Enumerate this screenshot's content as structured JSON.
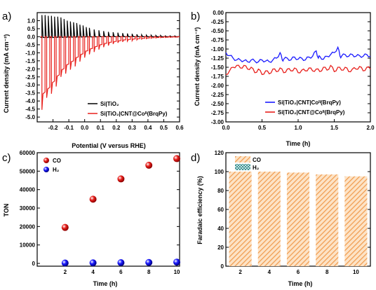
{
  "chart_data": [
    {
      "panel": "a)",
      "type": "line",
      "xlabel": "Potential (V versus RHE)",
      "ylabel": "Current density (mA cm⁻²)",
      "xlim": [
        -0.3,
        0.6
      ],
      "ylim": [
        -5.3,
        1.5
      ],
      "xticks": [
        -0.2,
        -0.1,
        0.0,
        0.1,
        0.2,
        0.3,
        0.4,
        0.5,
        0.6
      ],
      "xtick_labels": [
        "-0.2",
        "-0.1",
        "0.0",
        "0.1",
        "0.2",
        "0.3",
        "0.4",
        "0.5",
        "0.6"
      ],
      "yticks": [
        -5.0,
        -4.5,
        -4.0,
        -3.5,
        -3.0,
        -2.5,
        -2.0,
        -1.5,
        -1.0,
        -0.5,
        0.0,
        0.5,
        1.0
      ],
      "ytick_labels": [
        "-5.0",
        "-4.5",
        "-4.0",
        "-3.5",
        "-3.0",
        "-2.5",
        "-2.0",
        "-1.5",
        "-1.0",
        "-0.5",
        "0.0",
        "0.5",
        "1.0"
      ],
      "legend_position": "bottom-left",
      "series": [
        {
          "name": "Si|TiO₂",
          "color": "#000000",
          "chopped": true,
          "x_start": -0.28,
          "x_end": 0.6,
          "chop_x": [
            -0.27,
            -0.25,
            -0.23,
            -0.21,
            -0.19,
            -0.17,
            -0.15,
            -0.13,
            -0.11,
            -0.09,
            -0.07,
            -0.05,
            -0.03,
            -0.01,
            0.01,
            0.03,
            0.06,
            0.09,
            0.12,
            0.15,
            0.18,
            0.21,
            0.24,
            0.27,
            0.3,
            0.33,
            0.36,
            0.39,
            0.42,
            0.45,
            0.48,
            0.51,
            0.54,
            0.57
          ],
          "spike_y": [
            1.35,
            1.35,
            1.3,
            1.3,
            1.25,
            1.25,
            1.2,
            1.1,
            1.0,
            0.95,
            0.9,
            0.85,
            0.75,
            0.7,
            0.6,
            0.55,
            0.45,
            0.4,
            0.35,
            0.3,
            0.28,
            0.25,
            0.22,
            0.2,
            0.18,
            0.15,
            0.12,
            0.1,
            0.1,
            0.08,
            0.08,
            0.05,
            0.05,
            0.05
          ],
          "base_y": [
            -0.05,
            -0.05,
            -0.05,
            -0.05,
            -0.04,
            -0.04,
            -0.04,
            -0.03,
            -0.03,
            -0.03,
            -0.02,
            -0.02,
            -0.02,
            -0.01,
            -0.01,
            -0.01,
            -0.01,
            0.0,
            0.0,
            0.0,
            0.0,
            0.0,
            0.0,
            0.0,
            0.0,
            0.0,
            0.0,
            0.0,
            0.0,
            0.0,
            0.0,
            0.0,
            0.0,
            0.0
          ]
        },
        {
          "name": "Si|TiO₂|CNT@Coᴵᴵ(BrqPy)",
          "color": "#e8201c",
          "chopped": true,
          "x_start": -0.28,
          "x_end": 0.6,
          "chop_x": [
            -0.27,
            -0.24,
            -0.21,
            -0.18,
            -0.15,
            -0.12,
            -0.09,
            -0.06,
            -0.03,
            0.0,
            0.03,
            0.06,
            0.09,
            0.12,
            0.15,
            0.18,
            0.21,
            0.24,
            0.27,
            0.3,
            0.33,
            0.36,
            0.39,
            0.42,
            0.45,
            0.48,
            0.51,
            0.54,
            0.57
          ],
          "dip_y": [
            -4.55,
            -3.8,
            -3.55,
            -3.1,
            -2.5,
            -2.3,
            -2.05,
            -1.85,
            -1.55,
            -1.3,
            -1.1,
            -0.95,
            -0.8,
            -0.65,
            -0.55,
            -0.45,
            -0.38,
            -0.32,
            -0.28,
            -0.25,
            -0.2,
            -0.15,
            -0.12,
            -0.1,
            -0.08,
            -0.06,
            -0.05,
            -0.04,
            -0.03
          ],
          "plateau_y": [
            -3.55,
            -3.25,
            -2.85,
            -2.45,
            -2.05,
            -1.75,
            -1.55,
            -1.3,
            -1.1,
            -0.9,
            -0.75,
            -0.62,
            -0.5,
            -0.42,
            -0.35,
            -0.3,
            -0.25,
            -0.2,
            -0.17,
            -0.14,
            -0.12,
            -0.1,
            -0.08,
            -0.06,
            -0.05,
            -0.04,
            -0.03,
            -0.02,
            -0.02
          ],
          "base_y": [
            0.0,
            0.0,
            0.0,
            0.0,
            0.0,
            0.0,
            0.0,
            0.0,
            0.0,
            0.0,
            0.0,
            0.0,
            0.0,
            0.0,
            0.0,
            0.0,
            0.0,
            0.0,
            0.0,
            0.0,
            0.0,
            0.0,
            0.0,
            0.0,
            0.0,
            0.0,
            0.0,
            0.0,
            0.0
          ]
        }
      ]
    },
    {
      "panel": "b)",
      "type": "line",
      "xlabel": "Time (h)",
      "ylabel": "Current density (mA cm⁻²)",
      "xlim": [
        0.0,
        2.0
      ],
      "ylim": [
        -3.0,
        0.0
      ],
      "xticks": [
        0.0,
        0.5,
        1.0,
        1.5,
        2.0
      ],
      "xtick_labels": [
        "0.0",
        "0.5",
        "1.0",
        "1.5",
        "2.0"
      ],
      "yticks": [
        -3.0,
        -2.75,
        -2.5,
        -2.25,
        -2.0,
        -1.75,
        -1.5,
        -1.25,
        -1.0,
        -0.75,
        -0.5,
        -0.25,
        0.0
      ],
      "ytick_labels": [
        "-3.00",
        "-2.75",
        "-2.50",
        "-2.25",
        "-2.00",
        "-1.75",
        "-1.50",
        "-1.25",
        "-1.00",
        "-0.75",
        "-0.50",
        "-0.25",
        "0.00"
      ],
      "legend_position": "bottom-right",
      "series": [
        {
          "name": "Si|TiO₂|CNT|Coᴵᴵ(BrqPy)",
          "color": "#1a1aff",
          "x": [
            0.0,
            0.05,
            0.1,
            0.15,
            0.2,
            0.25,
            0.3,
            0.35,
            0.4,
            0.45,
            0.5,
            0.55,
            0.6,
            0.65,
            0.7,
            0.75,
            0.78,
            0.8,
            0.85,
            0.9,
            0.95,
            1.0,
            1.05,
            1.1,
            1.15,
            1.2,
            1.25,
            1.28,
            1.3,
            1.35,
            1.4,
            1.45,
            1.5,
            1.55,
            1.58,
            1.6,
            1.65,
            1.7,
            1.75,
            1.8,
            1.85,
            1.9,
            1.95,
            2.0
          ],
          "y": [
            -1.1,
            -1.18,
            -1.25,
            -1.3,
            -1.3,
            -1.32,
            -1.35,
            -1.3,
            -1.33,
            -1.35,
            -1.3,
            -1.33,
            -1.35,
            -1.3,
            -1.25,
            -1.1,
            -1.3,
            -1.28,
            -1.25,
            -1.3,
            -1.22,
            -1.28,
            -1.25,
            -1.3,
            -1.22,
            -1.2,
            -1.05,
            -1.25,
            -1.2,
            -1.28,
            -1.2,
            -1.15,
            -1.1,
            -0.95,
            -1.2,
            -1.2,
            -1.15,
            -1.2,
            -1.15,
            -1.2,
            -1.18,
            -1.2,
            -1.15,
            -1.2
          ]
        },
        {
          "name": "Si|TiO₂|CNT@Coᴵᴵ(BrqPy)",
          "color": "#e8201c",
          "x": [
            0.0,
            0.05,
            0.1,
            0.15,
            0.2,
            0.25,
            0.3,
            0.35,
            0.4,
            0.45,
            0.5,
            0.55,
            0.6,
            0.65,
            0.7,
            0.75,
            0.8,
            0.85,
            0.9,
            0.95,
            1.0,
            1.05,
            1.1,
            1.15,
            1.2,
            1.25,
            1.3,
            1.35,
            1.4,
            1.45,
            1.5,
            1.55,
            1.6,
            1.65,
            1.7,
            1.75,
            1.8,
            1.85,
            1.9,
            1.95,
            2.0
          ],
          "y": [
            -1.7,
            -1.6,
            -1.5,
            -1.45,
            -1.52,
            -1.45,
            -1.55,
            -1.5,
            -1.65,
            -1.55,
            -1.7,
            -1.6,
            -1.68,
            -1.55,
            -1.62,
            -1.52,
            -1.65,
            -1.55,
            -1.6,
            -1.52,
            -1.65,
            -1.58,
            -1.6,
            -1.52,
            -1.6,
            -1.55,
            -1.62,
            -1.5,
            -1.58,
            -1.45,
            -1.62,
            -1.5,
            -1.58,
            -1.5,
            -1.62,
            -1.55,
            -1.55,
            -1.48,
            -1.6,
            -1.5,
            -1.55
          ]
        }
      ]
    },
    {
      "panel": "c)",
      "type": "scatter",
      "xlabel": "Time (h)",
      "ylabel": "TON",
      "xlim": [
        0,
        10.2
      ],
      "ylim": [
        -1500,
        60000
      ],
      "xticks": [
        2,
        4,
        6,
        8,
        10
      ],
      "xtick_labels": [
        "2",
        "4",
        "6",
        "8",
        "10"
      ],
      "yticks": [
        0,
        10000,
        20000,
        30000,
        40000,
        50000,
        60000
      ],
      "ytick_labels": [
        "0",
        "10000",
        "20000",
        "30000",
        "40000",
        "50000",
        "60000"
      ],
      "legend_position": "top-left",
      "series": [
        {
          "name": "CO",
          "color": "#e8201c",
          "x": [
            2,
            4,
            6,
            8,
            10
          ],
          "y": [
            19500,
            34800,
            45800,
            53200,
            56800
          ]
        },
        {
          "name": "H₂",
          "color": "#1a1aff",
          "x": [
            2,
            4,
            6,
            8,
            10
          ],
          "y": [
            200,
            300,
            400,
            500,
            700
          ]
        }
      ]
    },
    {
      "panel": "d)",
      "type": "bar",
      "stacked": true,
      "xlabel": "Time (h)",
      "ylabel": "Faradaic efficiency (%)",
      "categories": [
        "2",
        "4",
        "6",
        "8",
        "10"
      ],
      "ylim": [
        0,
        120
      ],
      "yticks": [
        0,
        20,
        40,
        60,
        80,
        100,
        120
      ],
      "ytick_labels": [
        "0",
        "20",
        "40",
        "60",
        "80",
        "100",
        "120"
      ],
      "legend_position": "top-left",
      "series": [
        {
          "name": "CO",
          "color": "#f4a460",
          "pattern": "hatched",
          "values": [
            100,
            100,
            99,
            97,
            95
          ]
        },
        {
          "name": "H₂",
          "color": "#2e8b8b",
          "pattern": "cross-hatched",
          "values": [
            0,
            0,
            0,
            0,
            0
          ]
        }
      ]
    }
  ]
}
